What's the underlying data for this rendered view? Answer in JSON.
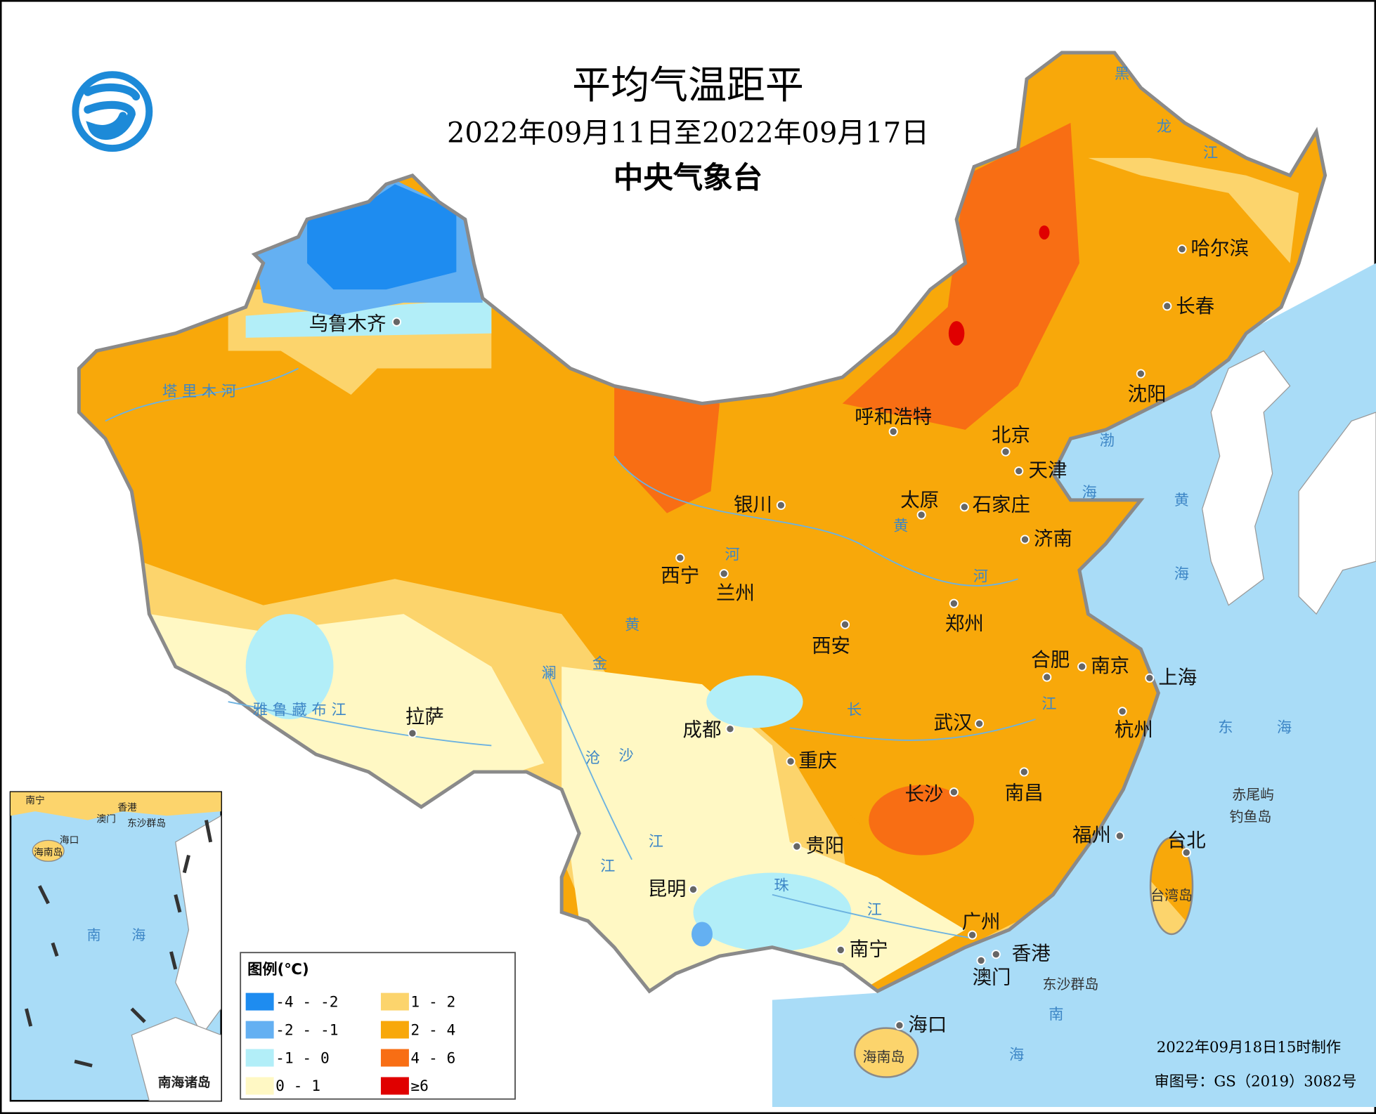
{
  "header": {
    "title": "平均气温距平",
    "subtitle": "2022年09月11日至2022年09月17日",
    "agency": "中央气象台"
  },
  "cities": [
    "乌鲁木齐",
    "哈尔滨",
    "长春",
    "沈阳",
    "呼和浩特",
    "北京",
    "天津",
    "银川",
    "太原",
    "石家庄",
    "济南",
    "西宁",
    "兰州",
    "郑州",
    "西安",
    "合肥",
    "南京",
    "上海",
    "拉萨",
    "成都",
    "武汉",
    "杭州",
    "重庆",
    "长沙",
    "南昌",
    "福州",
    "台北",
    "贵阳",
    "昆明",
    "广州",
    "香港",
    "澳门",
    "南宁",
    "海口"
  ],
  "geo_labels": [
    "塔 里 木 河",
    "雅 鲁 藏 布 江",
    "黄",
    "河",
    "黄",
    "河",
    "澜",
    "沧",
    "江",
    "金",
    "沙",
    "江",
    "长",
    "江",
    "珠",
    "江",
    "黑",
    "龙",
    "江",
    "渤",
    "海",
    "黄",
    "海",
    "东",
    "海",
    "南",
    "海"
  ],
  "islands": [
    "赤尾屿",
    "钓鱼岛",
    "台湾岛",
    "东沙群岛",
    "海南岛"
  ],
  "inset": {
    "labels": [
      "南宁",
      "香港",
      "澳门",
      "东沙群岛",
      "海口",
      "海南岛",
      "南",
      "海"
    ],
    "title": "南海诸岛"
  },
  "legend": {
    "title": "图例(℃)",
    "items": [
      {
        "label": "-4 - -2",
        "color": "#1e8cf0"
      },
      {
        "label": "-2 - -1",
        "color": "#64b0f2"
      },
      {
        "label": "-1 - 0",
        "color": "#b2eef8"
      },
      {
        "label": "0 - 1",
        "color": "#fff8c4"
      },
      {
        "label": "1 - 2",
        "color": "#fcd46c"
      },
      {
        "label": "2 - 4",
        "color": "#f8a80a"
      },
      {
        "label": "4 - 6",
        "color": "#f86e14"
      },
      {
        "label": "≥6",
        "color": "#e00000"
      }
    ]
  },
  "footer": {
    "made": "2022年09月18日15时制作",
    "approval": "审图号：GS（2019）3082号"
  }
}
